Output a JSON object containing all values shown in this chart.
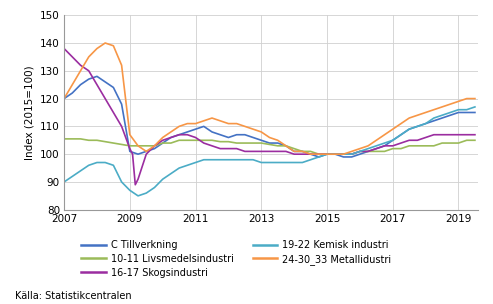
{
  "title": "",
  "ylabel": "Index (2015=100)",
  "xlabel": "",
  "ylim": [
    80,
    150
  ],
  "yticks": [
    80,
    90,
    100,
    110,
    120,
    130,
    140,
    150
  ],
  "xlim_start": 2007.0,
  "xlim_end": 2019.6,
  "xtick_years": [
    2007,
    2009,
    2011,
    2013,
    2015,
    2017,
    2019
  ],
  "source_text": "Källa: Statistikcentralen",
  "legend_entries": [
    {
      "label": "C Tillverkning",
      "color": "#4472C4"
    },
    {
      "label": "10-11 Livsmedelsindustri",
      "color": "#9BBB59"
    },
    {
      "label": "16-17 Skogsindustri",
      "color": "#9B2DA0"
    },
    {
      "label": "19-22 Kemisk industri",
      "color": "#4BACC6"
    },
    {
      "label": "24-30_33 Metallidustri",
      "color": "#F79646"
    }
  ],
  "background_color": "#FFFFFF",
  "grid_color": "#D0D0D0",
  "series": {
    "C_Tillverkning": {
      "color": "#4472C4",
      "points": [
        [
          2007.0,
          120
        ],
        [
          2007.25,
          122
        ],
        [
          2007.5,
          125
        ],
        [
          2007.75,
          127
        ],
        [
          2008.0,
          128
        ],
        [
          2008.25,
          126
        ],
        [
          2008.5,
          124
        ],
        [
          2008.75,
          118
        ],
        [
          2009.0,
          101
        ],
        [
          2009.25,
          100
        ],
        [
          2009.5,
          101
        ],
        [
          2009.75,
          102
        ],
        [
          2010.0,
          104
        ],
        [
          2010.25,
          106
        ],
        [
          2010.5,
          107
        ],
        [
          2010.75,
          108
        ],
        [
          2011.0,
          109
        ],
        [
          2011.25,
          110
        ],
        [
          2011.5,
          108
        ],
        [
          2011.75,
          107
        ],
        [
          2012.0,
          106
        ],
        [
          2012.25,
          107
        ],
        [
          2012.5,
          107
        ],
        [
          2012.75,
          106
        ],
        [
          2013.0,
          105
        ],
        [
          2013.25,
          104
        ],
        [
          2013.5,
          104
        ],
        [
          2013.75,
          103
        ],
        [
          2014.0,
          101
        ],
        [
          2014.25,
          101
        ],
        [
          2014.5,
          100
        ],
        [
          2014.75,
          99
        ],
        [
          2015.0,
          100
        ],
        [
          2015.25,
          100
        ],
        [
          2015.5,
          99
        ],
        [
          2015.75,
          99
        ],
        [
          2016.0,
          100
        ],
        [
          2016.25,
          101
        ],
        [
          2016.5,
          102
        ],
        [
          2016.75,
          103
        ],
        [
          2017.0,
          105
        ],
        [
          2017.25,
          107
        ],
        [
          2017.5,
          109
        ],
        [
          2017.75,
          110
        ],
        [
          2018.0,
          111
        ],
        [
          2018.25,
          112
        ],
        [
          2018.5,
          113
        ],
        [
          2018.75,
          114
        ],
        [
          2019.0,
          115
        ],
        [
          2019.25,
          115
        ],
        [
          2019.5,
          115
        ]
      ]
    },
    "Livsmedelsindustri": {
      "color": "#9BBB59",
      "points": [
        [
          2007.0,
          105.5
        ],
        [
          2007.25,
          105.5
        ],
        [
          2007.5,
          105.5
        ],
        [
          2007.75,
          105
        ],
        [
          2008.0,
          105
        ],
        [
          2008.25,
          104.5
        ],
        [
          2008.5,
          104
        ],
        [
          2008.75,
          103.5
        ],
        [
          2009.0,
          103
        ],
        [
          2009.25,
          103
        ],
        [
          2009.5,
          103
        ],
        [
          2009.75,
          103
        ],
        [
          2010.0,
          104
        ],
        [
          2010.25,
          104
        ],
        [
          2010.5,
          105
        ],
        [
          2010.75,
          105
        ],
        [
          2011.0,
          105
        ],
        [
          2011.25,
          105
        ],
        [
          2011.5,
          105
        ],
        [
          2011.75,
          104.5
        ],
        [
          2012.0,
          104.5
        ],
        [
          2012.25,
          104
        ],
        [
          2012.5,
          104
        ],
        [
          2012.75,
          104
        ],
        [
          2013.0,
          104
        ],
        [
          2013.25,
          103.5
        ],
        [
          2013.5,
          103
        ],
        [
          2013.75,
          103
        ],
        [
          2014.0,
          102
        ],
        [
          2014.25,
          101
        ],
        [
          2014.5,
          101
        ],
        [
          2014.75,
          100
        ],
        [
          2015.0,
          100
        ],
        [
          2015.25,
          100
        ],
        [
          2015.5,
          100
        ],
        [
          2015.75,
          100
        ],
        [
          2016.0,
          101
        ],
        [
          2016.25,
          101
        ],
        [
          2016.5,
          101
        ],
        [
          2016.75,
          101
        ],
        [
          2017.0,
          102
        ],
        [
          2017.25,
          102
        ],
        [
          2017.5,
          103
        ],
        [
          2017.75,
          103
        ],
        [
          2018.0,
          103
        ],
        [
          2018.25,
          103
        ],
        [
          2018.5,
          104
        ],
        [
          2018.75,
          104
        ],
        [
          2019.0,
          104
        ],
        [
          2019.25,
          105
        ],
        [
          2019.5,
          105
        ]
      ]
    },
    "Skogsindustri": {
      "color": "#9B2DA0",
      "points": [
        [
          2007.0,
          138
        ],
        [
          2007.25,
          135
        ],
        [
          2007.5,
          132
        ],
        [
          2007.75,
          130
        ],
        [
          2008.0,
          125
        ],
        [
          2008.25,
          120
        ],
        [
          2008.5,
          115
        ],
        [
          2008.75,
          110
        ],
        [
          2009.0,
          102
        ],
        [
          2009.083,
          100
        ],
        [
          2009.166,
          89
        ],
        [
          2009.25,
          91
        ],
        [
          2009.5,
          100
        ],
        [
          2009.75,
          103
        ],
        [
          2010.0,
          105
        ],
        [
          2010.25,
          106
        ],
        [
          2010.5,
          107
        ],
        [
          2010.75,
          107
        ],
        [
          2011.0,
          106
        ],
        [
          2011.25,
          104
        ],
        [
          2011.5,
          103
        ],
        [
          2011.75,
          102
        ],
        [
          2012.0,
          102
        ],
        [
          2012.25,
          102
        ],
        [
          2012.5,
          101
        ],
        [
          2012.75,
          101
        ],
        [
          2013.0,
          101
        ],
        [
          2013.25,
          101
        ],
        [
          2013.5,
          101
        ],
        [
          2013.75,
          101
        ],
        [
          2014.0,
          100
        ],
        [
          2014.25,
          100
        ],
        [
          2014.5,
          100
        ],
        [
          2014.75,
          100
        ],
        [
          2015.0,
          100
        ],
        [
          2015.25,
          100
        ],
        [
          2015.5,
          100
        ],
        [
          2015.75,
          100
        ],
        [
          2016.0,
          101
        ],
        [
          2016.25,
          101
        ],
        [
          2016.5,
          102
        ],
        [
          2016.75,
          103
        ],
        [
          2017.0,
          103
        ],
        [
          2017.25,
          104
        ],
        [
          2017.5,
          105
        ],
        [
          2017.75,
          105
        ],
        [
          2018.0,
          106
        ],
        [
          2018.25,
          107
        ],
        [
          2018.5,
          107
        ],
        [
          2018.75,
          107
        ],
        [
          2019.0,
          107
        ],
        [
          2019.25,
          107
        ],
        [
          2019.5,
          107
        ]
      ]
    },
    "Kemisk_industri": {
      "color": "#4BACC6",
      "points": [
        [
          2007.0,
          90
        ],
        [
          2007.25,
          92
        ],
        [
          2007.5,
          94
        ],
        [
          2007.75,
          96
        ],
        [
          2008.0,
          97
        ],
        [
          2008.25,
          97
        ],
        [
          2008.5,
          96
        ],
        [
          2008.75,
          90
        ],
        [
          2009.0,
          87
        ],
        [
          2009.25,
          85
        ],
        [
          2009.5,
          86
        ],
        [
          2009.75,
          88
        ],
        [
          2010.0,
          91
        ],
        [
          2010.25,
          93
        ],
        [
          2010.5,
          95
        ],
        [
          2010.75,
          96
        ],
        [
          2011.0,
          97
        ],
        [
          2011.25,
          98
        ],
        [
          2011.5,
          98
        ],
        [
          2011.75,
          98
        ],
        [
          2012.0,
          98
        ],
        [
          2012.25,
          98
        ],
        [
          2012.5,
          98
        ],
        [
          2012.75,
          98
        ],
        [
          2013.0,
          97
        ],
        [
          2013.25,
          97
        ],
        [
          2013.5,
          97
        ],
        [
          2013.75,
          97
        ],
        [
          2014.0,
          97
        ],
        [
          2014.25,
          97
        ],
        [
          2014.5,
          98
        ],
        [
          2014.75,
          99
        ],
        [
          2015.0,
          100
        ],
        [
          2015.25,
          100
        ],
        [
          2015.5,
          100
        ],
        [
          2015.75,
          100
        ],
        [
          2016.0,
          101
        ],
        [
          2016.25,
          102
        ],
        [
          2016.5,
          103
        ],
        [
          2016.75,
          104
        ],
        [
          2017.0,
          105
        ],
        [
          2017.25,
          107
        ],
        [
          2017.5,
          109
        ],
        [
          2017.75,
          110
        ],
        [
          2018.0,
          111
        ],
        [
          2018.25,
          113
        ],
        [
          2018.5,
          114
        ],
        [
          2018.75,
          115
        ],
        [
          2019.0,
          116
        ],
        [
          2019.25,
          116
        ],
        [
          2019.5,
          117
        ]
      ]
    },
    "Metallidustri": {
      "color": "#F79646",
      "points": [
        [
          2007.0,
          120
        ],
        [
          2007.25,
          125
        ],
        [
          2007.5,
          130
        ],
        [
          2007.75,
          135
        ],
        [
          2008.0,
          138
        ],
        [
          2008.25,
          140
        ],
        [
          2008.5,
          139
        ],
        [
          2008.75,
          132
        ],
        [
          2009.0,
          107
        ],
        [
          2009.25,
          103
        ],
        [
          2009.5,
          101
        ],
        [
          2009.75,
          103
        ],
        [
          2010.0,
          106
        ],
        [
          2010.25,
          108
        ],
        [
          2010.5,
          110
        ],
        [
          2010.75,
          111
        ],
        [
          2011.0,
          111
        ],
        [
          2011.25,
          112
        ],
        [
          2011.5,
          113
        ],
        [
          2011.75,
          112
        ],
        [
          2012.0,
          111
        ],
        [
          2012.25,
          111
        ],
        [
          2012.5,
          110
        ],
        [
          2012.75,
          109
        ],
        [
          2013.0,
          108
        ],
        [
          2013.25,
          106
        ],
        [
          2013.5,
          105
        ],
        [
          2013.75,
          103
        ],
        [
          2014.0,
          101
        ],
        [
          2014.25,
          101
        ],
        [
          2014.5,
          100
        ],
        [
          2014.75,
          100
        ],
        [
          2015.0,
          100
        ],
        [
          2015.25,
          100
        ],
        [
          2015.5,
          100
        ],
        [
          2015.75,
          101
        ],
        [
          2016.0,
          102
        ],
        [
          2016.25,
          103
        ],
        [
          2016.5,
          105
        ],
        [
          2016.75,
          107
        ],
        [
          2017.0,
          109
        ],
        [
          2017.25,
          111
        ],
        [
          2017.5,
          113
        ],
        [
          2017.75,
          114
        ],
        [
          2018.0,
          115
        ],
        [
          2018.25,
          116
        ],
        [
          2018.5,
          117
        ],
        [
          2018.75,
          118
        ],
        [
          2019.0,
          119
        ],
        [
          2019.25,
          120
        ],
        [
          2019.5,
          120
        ]
      ]
    }
  }
}
